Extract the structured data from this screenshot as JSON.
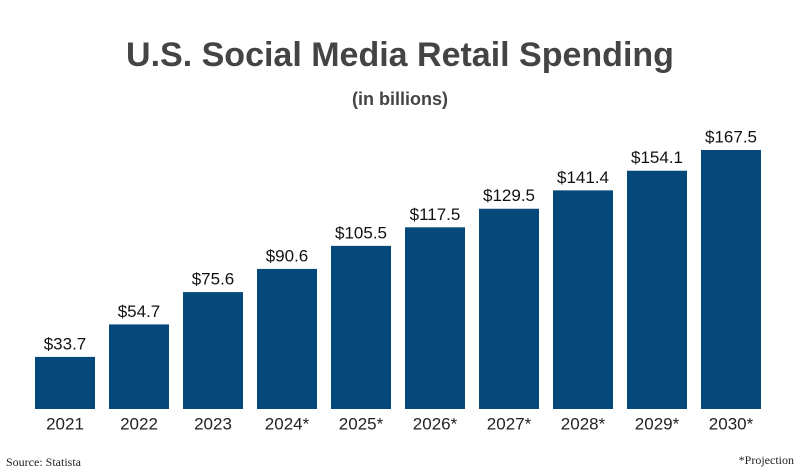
{
  "chart_data": {
    "type": "bar",
    "title": "U.S. Social Media Retail Spending",
    "subtitle": "(in billions)",
    "categories": [
      "2021",
      "2022",
      "2023",
      "2024*",
      "2025*",
      "2026*",
      "2027*",
      "2028*",
      "2029*",
      "2030*"
    ],
    "values": [
      33.7,
      54.7,
      75.6,
      90.6,
      105.5,
      117.5,
      129.5,
      141.4,
      154.1,
      167.5
    ],
    "value_labels": [
      "$33.7",
      "$54.7",
      "$75.6",
      "$90.6",
      "$105.5",
      "$117.5",
      "$129.5",
      "$141.4",
      "$154.1",
      "$167.5"
    ],
    "color": "#05497a",
    "source": "Source: Statista",
    "note": "*Projection"
  }
}
